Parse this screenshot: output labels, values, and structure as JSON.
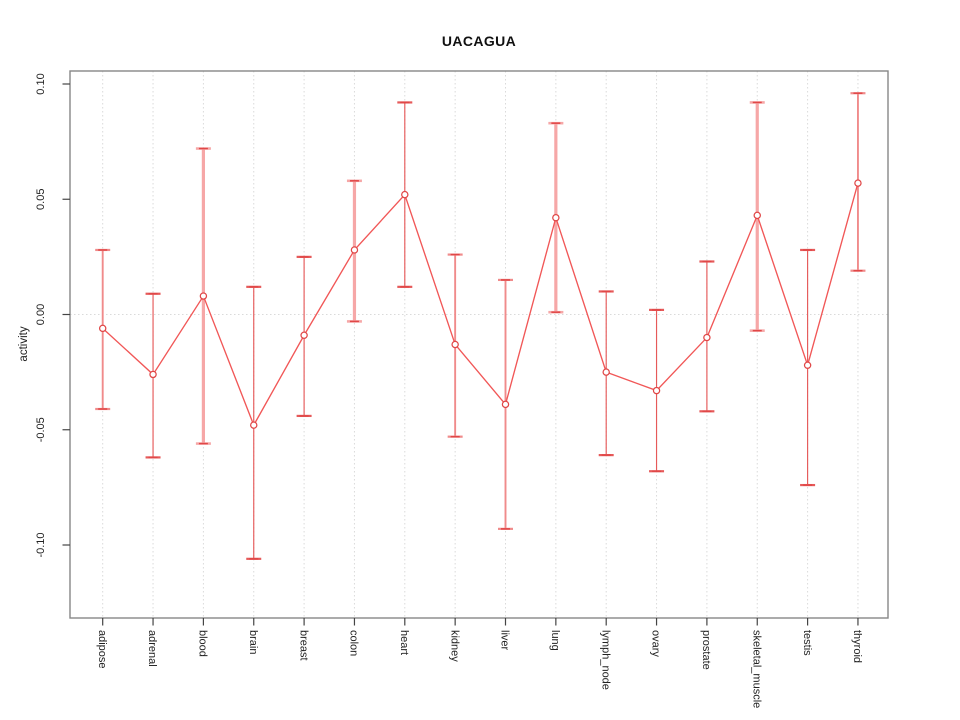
{
  "title": "UACAGUA",
  "chart_data": {
    "type": "line",
    "title": "UACAGUA",
    "subtitle": "",
    "xlabel": "",
    "ylabel": "activity",
    "legend": "none",
    "grid": "dotted vertical gridline at each category; dotted horizontal line at 0",
    "ylim": [
      -0.131,
      0.107
    ],
    "yticks": [
      0.1,
      0.05,
      0.0,
      -0.05,
      -0.1
    ],
    "ytick_labels": [
      "0.10",
      "0.05",
      "0.00",
      "-0.05",
      "-0.10"
    ],
    "zero_line": 0.0,
    "categories": [
      "adipose",
      "adrenal",
      "blood",
      "brain",
      "breast",
      "colon",
      "heart",
      "kidney",
      "liver",
      "lung",
      "lymph_node",
      "ovary",
      "prostate",
      "skeletal_muscle",
      "testis",
      "thyroid"
    ],
    "series": [
      {
        "name": "activity",
        "marker": "open-circle",
        "values": [
          -0.006,
          -0.026,
          0.008,
          -0.048,
          -0.009,
          0.028,
          0.052,
          -0.013,
          -0.039,
          0.042,
          -0.025,
          -0.033,
          -0.01,
          0.043,
          -0.022,
          0.057
        ],
        "ci_low": [
          -0.041,
          -0.062,
          -0.056,
          -0.106,
          -0.044,
          -0.003,
          0.012,
          -0.053,
          -0.093,
          0.001,
          -0.061,
          -0.068,
          -0.042,
          -0.007,
          -0.074,
          0.019
        ],
        "ci_high": [
          0.028,
          0.009,
          0.072,
          0.012,
          0.025,
          0.058,
          0.092,
          0.026,
          0.015,
          0.083,
          0.01,
          0.002,
          0.023,
          0.092,
          0.028,
          0.096
        ],
        "bar_weight": [
          "medium",
          "thin",
          "thick",
          "thin",
          "thin",
          "thick",
          "thin",
          "medium",
          "medium",
          "thick",
          "thin",
          "thin",
          "thin",
          "thick",
          "thin",
          "medium"
        ]
      }
    ],
    "colors": {
      "line": "#f15757",
      "marker": "#e04747",
      "bar_thick": "#f6a7a7",
      "bar_medium": "#f08b8b",
      "bar_thin": "#e65a5a",
      "cap_dark": "#e04747",
      "grid": "#dadada",
      "box": "#878787",
      "tick": "#444444",
      "text": "#222222"
    }
  }
}
